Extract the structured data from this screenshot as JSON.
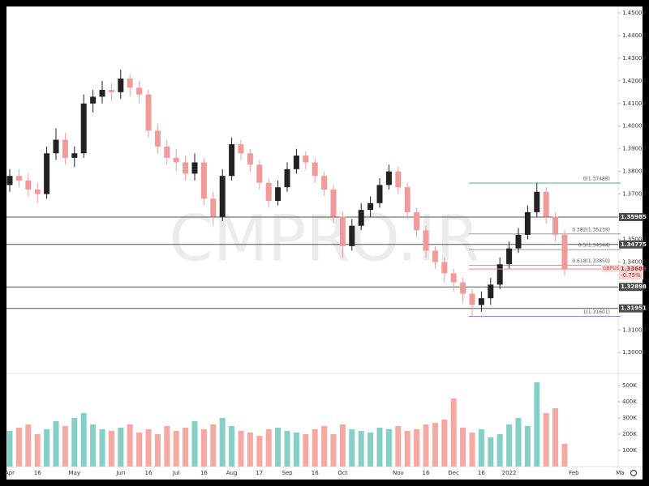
{
  "chart_data": {
    "type": "candlestick",
    "symbol": "GBPUSD",
    "watermark": "CMPRO.IR",
    "categories": [
      "Apr",
      null,
      null,
      "16",
      null,
      null,
      null,
      "May",
      null,
      null,
      null,
      null,
      "Jun",
      null,
      null,
      "16",
      null,
      null,
      "Jul",
      null,
      null,
      "16",
      null,
      null,
      "Aug",
      null,
      null,
      "17",
      null,
      null,
      "Sep",
      null,
      null,
      "16",
      null,
      null,
      "Oct",
      null,
      null,
      null,
      null,
      null,
      "Nov",
      null,
      null,
      "16",
      null,
      null,
      "Dec",
      null,
      null,
      "16",
      null,
      null,
      "2022",
      null,
      null,
      null,
      null,
      null,
      null,
      "Feb",
      null,
      null,
      null,
      null,
      "Ma"
    ],
    "open": [
      1.374,
      1.378,
      1.376,
      1.372,
      1.37,
      1.388,
      1.394,
      1.386,
      1.388,
      1.41,
      1.413,
      1.416,
      1.415,
      1.421,
      1.417,
      1.414,
      1.398,
      1.391,
      1.386,
      1.384,
      1.379,
      1.384,
      1.368,
      1.36,
      1.378,
      1.392,
      1.388,
      1.383,
      1.375,
      1.367,
      1.373,
      1.381,
      1.387,
      1.384,
      1.378,
      1.372,
      1.36,
      1.347,
      1.356,
      1.363,
      1.366,
      1.374,
      1.38,
      1.373,
      1.362,
      1.354,
      1.345,
      1.34,
      1.335,
      1.331,
      1.326,
      1.321,
      1.324,
      1.33,
      1.339,
      1.346,
      1.352,
      1.362,
      1.371,
      1.36,
      1.352,
      null,
      null,
      null,
      null,
      null,
      null
    ],
    "high": [
      1.381,
      1.381,
      1.379,
      1.375,
      1.391,
      1.399,
      1.397,
      1.391,
      1.414,
      1.416,
      1.42,
      1.419,
      1.425,
      1.423,
      1.42,
      1.416,
      1.401,
      1.394,
      1.39,
      1.387,
      1.388,
      1.386,
      1.371,
      1.381,
      1.395,
      1.394,
      1.39,
      1.385,
      1.377,
      1.376,
      1.384,
      1.39,
      1.389,
      1.386,
      1.38,
      1.374,
      1.362,
      1.359,
      1.366,
      1.369,
      1.377,
      1.383,
      1.382,
      1.375,
      1.364,
      1.356,
      1.347,
      1.342,
      1.337,
      1.333,
      1.328,
      1.327,
      1.333,
      1.342,
      1.349,
      1.355,
      1.365,
      1.37488,
      1.373,
      1.362,
      1.354,
      null,
      null,
      null,
      null,
      null,
      null
    ],
    "low": [
      1.371,
      1.373,
      1.369,
      1.366,
      1.368,
      1.385,
      1.383,
      1.382,
      1.386,
      1.406,
      1.41,
      1.411,
      1.412,
      1.413,
      1.41,
      1.395,
      1.388,
      1.383,
      1.38,
      1.376,
      1.376,
      1.365,
      1.356,
      1.358,
      1.376,
      1.385,
      1.38,
      1.372,
      1.364,
      1.365,
      1.371,
      1.379,
      1.381,
      1.375,
      1.369,
      1.357,
      1.342,
      1.345,
      1.354,
      1.36,
      1.364,
      1.372,
      1.37,
      1.359,
      1.351,
      1.342,
      1.337,
      1.331,
      1.327,
      1.322,
      1.31601,
      1.318,
      1.321,
      1.328,
      1.337,
      1.344,
      1.35,
      1.36,
      1.357,
      1.349,
      1.334,
      null,
      null,
      null,
      null,
      null,
      null
    ],
    "close": [
      1.378,
      1.376,
      1.372,
      1.37,
      1.388,
      1.394,
      1.386,
      1.388,
      1.41,
      1.413,
      1.416,
      1.415,
      1.421,
      1.417,
      1.414,
      1.398,
      1.391,
      1.386,
      1.384,
      1.379,
      1.384,
      1.368,
      1.36,
      1.378,
      1.392,
      1.388,
      1.383,
      1.375,
      1.367,
      1.373,
      1.381,
      1.387,
      1.384,
      1.378,
      1.372,
      1.36,
      1.347,
      1.356,
      1.363,
      1.366,
      1.374,
      1.38,
      1.373,
      1.362,
      1.354,
      1.345,
      1.34,
      1.335,
      1.331,
      1.326,
      1.321,
      1.324,
      1.33,
      1.339,
      1.346,
      1.352,
      1.362,
      1.371,
      1.36,
      1.352,
      1.33689,
      null,
      null,
      null,
      null,
      null,
      null
    ],
    "volume": [
      220000,
      240000,
      260000,
      200000,
      230000,
      280000,
      250000,
      300000,
      330000,
      260000,
      230000,
      220000,
      240000,
      260000,
      210000,
      230000,
      200000,
      250000,
      220000,
      240000,
      280000,
      230000,
      260000,
      300000,
      250000,
      220000,
      210000,
      190000,
      230000,
      240000,
      220000,
      210000,
      200000,
      230000,
      250000,
      200000,
      260000,
      230000,
      220000,
      210000,
      240000,
      230000,
      250000,
      220000,
      230000,
      260000,
      270000,
      290000,
      420000,
      240000,
      210000,
      230000,
      180000,
      200000,
      260000,
      300000,
      250000,
      520000,
      330000,
      360000,
      140000,
      null,
      null,
      null,
      null,
      null,
      null
    ],
    "up_color": "#222222",
    "down_color": "#f29a9a",
    "volume_up_color": "#86cfc6",
    "volume_down_color": "#f6a8a2",
    "ylim": [
      1.29114,
      1.45286
    ],
    "yticks": [
      {
        "value": 1.45,
        "label": "1.45000"
      },
      {
        "value": 1.44,
        "label": "1.44000"
      },
      {
        "value": 1.43,
        "label": "1.43000"
      },
      {
        "value": 1.42,
        "label": "1.42000"
      },
      {
        "value": 1.41,
        "label": "1.41000"
      },
      {
        "value": 1.4,
        "label": "1.40000"
      },
      {
        "value": 1.39,
        "label": "1.39000"
      },
      {
        "value": 1.38,
        "label": "1.38000"
      },
      {
        "value": 1.37,
        "label": "1.37000"
      },
      {
        "value": 1.35,
        "label": "1.35000"
      },
      {
        "value": 1.34,
        "label": "1.34000"
      },
      {
        "value": 1.31,
        "label": "1.31000"
      },
      {
        "value": 1.3,
        "label": "1.30000"
      }
    ],
    "volume_ylim": [
      0,
      570000
    ],
    "volume_yticks": [
      {
        "value": 500000,
        "label": "500K"
      },
      {
        "value": 400000,
        "label": "400K"
      },
      {
        "value": 300000,
        "label": "300K"
      },
      {
        "value": 200000,
        "label": "200K"
      },
      {
        "value": 100000,
        "label": "100K"
      }
    ],
    "levels": [
      {
        "value": 1.35985,
        "label": "1.35985"
      },
      {
        "value": 1.34775,
        "label": "1.34775"
      },
      {
        "value": 1.32898,
        "label": "1.32898"
      },
      {
        "value": 1.31951,
        "label": "1.31951"
      }
    ],
    "fib": [
      {
        "value": 1.37488,
        "label": "0(1.37488)",
        "color": "#4caf8a"
      },
      {
        "value": 1.35239,
        "label": "0.382(1.35239)",
        "color": "#9e9e9e"
      },
      {
        "value": 1.34544,
        "label": "0.5(1.34544)",
        "color": "#9e9e9e"
      },
      {
        "value": 1.3385,
        "label": "0.618(1.33850)",
        "color": "#9e9e9e"
      },
      {
        "value": 1.31601,
        "label": "1(1.31601)",
        "color": "#9c7ad6"
      }
    ],
    "last_price": {
      "value": 1.33689,
      "label": "1.33689",
      "change": "-0.75%",
      "color": "#f28b8b"
    }
  }
}
